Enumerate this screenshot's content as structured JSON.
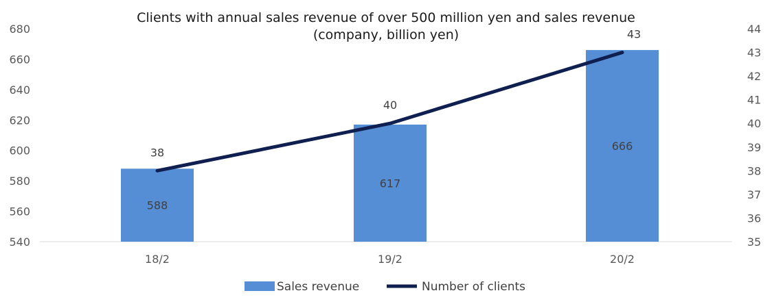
{
  "chart_data": {
    "type": "bar",
    "title": "Clients with annual sales revenue of over 500 million yen and sales revenue",
    "subtitle": "(company, billion yen)",
    "categories": [
      "18/2",
      "19/2",
      "20/2"
    ],
    "series": [
      {
        "name": "Sales revenue",
        "kind": "bar",
        "axis": "left",
        "values": [
          588,
          617,
          666
        ],
        "color": "#558ED5"
      },
      {
        "name": "Number of clients",
        "kind": "line",
        "axis": "right",
        "values": [
          38,
          40,
          43
        ],
        "color": "#0F1F4F"
      }
    ],
    "y_left": {
      "min": 540,
      "max": 680,
      "step": 20,
      "ticks": [
        "540",
        "560",
        "580",
        "600",
        "620",
        "640",
        "660",
        "680"
      ]
    },
    "y_right": {
      "min": 35,
      "max": 44,
      "step": 1,
      "ticks": [
        "35",
        "36",
        "37",
        "38",
        "39",
        "40",
        "41",
        "42",
        "43",
        "44"
      ]
    },
    "bar_labels": [
      "588",
      "617",
      "666"
    ],
    "line_labels": [
      "38",
      "40",
      "43"
    ],
    "grid": false,
    "legend_position": "bottom"
  }
}
